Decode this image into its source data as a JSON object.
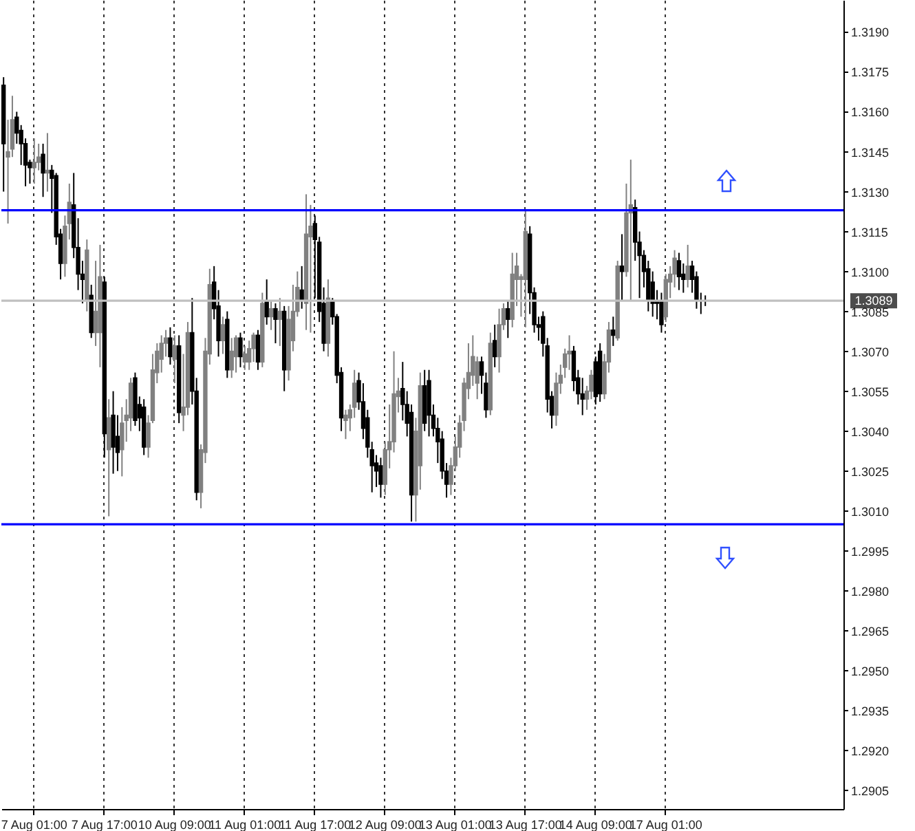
{
  "chart_data": {
    "type": "candlestick",
    "grid": "x",
    "categories": [
      null,
      null,
      null,
      null,
      null,
      null,
      null,
      "7 Aug 01:00",
      null,
      null,
      null,
      null,
      null,
      null,
      null,
      null,
      null,
      null,
      null,
      null,
      null,
      null,
      null,
      "7 Aug 17:00",
      null,
      null,
      null,
      null,
      null,
      null,
      null,
      null,
      null,
      null,
      null,
      null,
      null,
      null,
      null,
      "10 Aug 09:00",
      null,
      null,
      null,
      null,
      null,
      null,
      null,
      null,
      null,
      null,
      null,
      null,
      null,
      null,
      null,
      "11 Aug 01:00",
      null,
      null,
      null,
      null,
      null,
      null,
      null,
      null,
      null,
      null,
      null,
      null,
      null,
      null,
      null,
      "11 Aug 17:00",
      null,
      null,
      null,
      null,
      null,
      null,
      null,
      null,
      null,
      null,
      null,
      null,
      null,
      null,
      null,
      "12 Aug 09:00",
      null,
      null,
      null,
      null,
      null,
      null,
      null,
      null,
      null,
      null,
      null,
      null,
      null,
      null,
      null,
      "13 Aug 01:00",
      null,
      null,
      null,
      null,
      null,
      null,
      null,
      null,
      null,
      null,
      null,
      null,
      null,
      null,
      null,
      "13 Aug 17:00",
      null,
      null,
      null,
      null,
      null,
      null,
      null,
      null,
      null,
      null,
      null,
      null,
      null,
      null,
      null,
      "14 Aug 09:00",
      null,
      null,
      null,
      null,
      null,
      null,
      null,
      null,
      null,
      null,
      null,
      null,
      null,
      null,
      null,
      "17 Aug 01:00",
      null,
      null,
      null,
      null,
      null,
      null,
      null,
      null,
      null,
      null,
      null,
      null,
      null,
      null,
      null,
      null,
      null,
      null,
      null,
      null,
      null,
      null,
      null,
      null,
      null,
      null,
      null,
      null,
      null,
      null,
      null,
      null,
      null,
      null,
      null,
      null,
      null,
      null,
      null,
      null
    ],
    "ohlc": [
      [
        1.317,
        1.3173,
        1.313,
        1.3148
      ],
      [
        1.3143,
        1.3157,
        1.3118,
        1.3145
      ],
      [
        1.3146,
        1.3166,
        1.3143,
        1.3157
      ],
      [
        1.3158,
        1.316,
        1.3148,
        1.3152
      ],
      [
        1.3153,
        1.3155,
        1.314,
        1.3148
      ],
      [
        1.3148,
        1.315,
        1.3132,
        1.314
      ],
      [
        1.3141,
        1.3142,
        1.3133,
        1.3139
      ],
      [
        1.3139,
        1.315,
        1.3133,
        1.3141
      ],
      [
        1.3141,
        1.3148,
        1.3138,
        1.3143
      ],
      [
        1.3144,
        1.3148,
        1.3128,
        1.3137
      ],
      [
        1.3137,
        1.3152,
        1.313,
        1.3138
      ],
      [
        1.3138,
        1.314,
        1.3122,
        1.3135
      ],
      [
        1.3136,
        1.3137,
        1.311,
        1.3113
      ],
      [
        1.3114,
        1.3116,
        1.3097,
        1.3103
      ],
      [
        1.3103,
        1.3121,
        1.3098,
        1.3117
      ],
      [
        1.3118,
        1.3133,
        1.3112,
        1.3126
      ],
      [
        1.3125,
        1.3137,
        1.3105,
        1.3109
      ],
      [
        1.3109,
        1.312,
        1.3093,
        1.3099
      ],
      [
        1.3099,
        1.3104,
        1.3088,
        1.3097
      ],
      [
        1.3089,
        1.3112,
        1.3085,
        1.3108
      ],
      [
        1.3091,
        1.3095,
        1.3075,
        1.3077
      ],
      [
        1.3077,
        1.3104,
        1.3072,
        1.3085
      ],
      [
        1.3077,
        1.311,
        1.3064,
        1.3098
      ],
      [
        1.3096,
        1.3098,
        1.303,
        1.3039
      ],
      [
        1.3033,
        1.3052,
        1.3008,
        1.3045
      ],
      [
        1.3046,
        1.3055,
        1.3024,
        1.3034
      ],
      [
        1.3038,
        1.3046,
        1.3025,
        1.3032
      ],
      [
        1.3033,
        1.3049,
        1.3023,
        1.3043
      ],
      [
        1.3044,
        1.3052,
        1.3036,
        1.3046
      ],
      [
        1.3045,
        1.306,
        1.304,
        1.3058
      ],
      [
        1.306,
        1.3062,
        1.3042,
        1.3044
      ],
      [
        1.305,
        1.3053,
        1.304,
        1.3045
      ],
      [
        1.3049,
        1.3052,
        1.3031,
        1.3034
      ],
      [
        1.3034,
        1.3046,
        1.303,
        1.3043
      ],
      [
        1.3044,
        1.3069,
        1.3043,
        1.3063
      ],
      [
        1.3062,
        1.3073,
        1.3058,
        1.307
      ],
      [
        1.3067,
        1.3076,
        1.3062,
        1.3073
      ],
      [
        1.3073,
        1.3078,
        1.3068,
        1.3075
      ],
      [
        1.3075,
        1.3079,
        1.3065,
        1.3068
      ],
      [
        1.3067,
        1.3076,
        1.3058,
        1.3072
      ],
      [
        1.3072,
        1.3076,
        1.3043,
        1.3047
      ],
      [
        1.3046,
        1.3069,
        1.304,
        1.3049
      ],
      [
        1.3049,
        1.3081,
        1.3046,
        1.3077
      ],
      [
        1.3077,
        1.309,
        1.305,
        1.3055
      ],
      [
        1.3055,
        1.306,
        1.3014,
        1.3017
      ],
      [
        1.3017,
        1.3035,
        1.3011,
        1.3033
      ],
      [
        1.3032,
        1.3075,
        1.3028,
        1.307
      ],
      [
        1.3069,
        1.3101,
        1.3065,
        1.3095
      ],
      [
        1.3096,
        1.3102,
        1.3082,
        1.3086
      ],
      [
        1.3087,
        1.3093,
        1.3068,
        1.3074
      ],
      [
        1.3074,
        1.3083,
        1.3069,
        1.308
      ],
      [
        1.3082,
        1.3085,
        1.306,
        1.3063
      ],
      [
        1.3063,
        1.3075,
        1.306,
        1.307
      ],
      [
        1.3068,
        1.3076,
        1.3062,
        1.3075
      ],
      [
        1.3075,
        1.3077,
        1.3064,
        1.3068
      ],
      [
        1.3066,
        1.3072,
        1.3063,
        1.3069
      ],
      [
        1.3066,
        1.3074,
        1.3063,
        1.3071
      ],
      [
        1.3071,
        1.3077,
        1.3066,
        1.3076
      ],
      [
        1.3076,
        1.3078,
        1.3063,
        1.3066
      ],
      [
        1.3066,
        1.3092,
        1.3064,
        1.3088
      ],
      [
        1.3089,
        1.3097,
        1.308,
        1.3083
      ],
      [
        1.3083,
        1.3089,
        1.3078,
        1.3086
      ],
      [
        1.3086,
        1.3088,
        1.3073,
        1.3082
      ],
      [
        1.3082,
        1.309,
        1.3072,
        1.3085
      ],
      [
        1.3085,
        1.3087,
        1.3055,
        1.3063
      ],
      [
        1.3063,
        1.3087,
        1.3059,
        1.3082
      ],
      [
        1.3074,
        1.3095,
        1.307,
        1.3085
      ],
      [
        1.3085,
        1.31,
        1.3083,
        1.3094
      ],
      [
        1.3093,
        1.3102,
        1.3086,
        1.3089
      ],
      [
        1.3088,
        1.3129,
        1.3078,
        1.3114
      ],
      [
        1.3113,
        1.3125,
        1.3077,
        1.3117
      ],
      [
        1.3118,
        1.3121,
        1.309,
        1.3112
      ],
      [
        1.3111,
        1.3113,
        1.3081,
        1.3085
      ],
      [
        1.3088,
        1.3094,
        1.307,
        1.3073
      ],
      [
        1.3073,
        1.3097,
        1.3068,
        1.309
      ],
      [
        1.3089,
        1.309,
        1.308,
        1.3083
      ],
      [
        1.3083,
        1.3084,
        1.3058,
        1.3061
      ],
      [
        1.3062,
        1.3064,
        1.304,
        1.3045
      ],
      [
        1.3044,
        1.3048,
        1.3037,
        1.3046
      ],
      [
        1.3045,
        1.305,
        1.304,
        1.3048
      ],
      [
        1.3049,
        1.3063,
        1.3045,
        1.3058
      ],
      [
        1.3059,
        1.3062,
        1.3048,
        1.3051
      ],
      [
        1.3051,
        1.3058,
        1.3037,
        1.3041
      ],
      [
        1.3045,
        1.3048,
        1.303,
        1.3034
      ],
      [
        1.3033,
        1.3036,
        1.3017,
        1.3027
      ],
      [
        1.3028,
        1.3031,
        1.3019,
        1.3025
      ],
      [
        1.3027,
        1.303,
        1.3015,
        1.302
      ],
      [
        1.302,
        1.3036,
        1.3016,
        1.3033
      ],
      [
        1.3033,
        1.305,
        1.3026,
        1.3036
      ],
      [
        1.3036,
        1.307,
        1.3032,
        1.3054
      ],
      [
        1.3053,
        1.306,
        1.3047,
        1.3055
      ],
      [
        1.3056,
        1.3066,
        1.3044,
        1.305
      ],
      [
        1.305,
        1.3055,
        1.3038,
        1.3043
      ],
      [
        1.3047,
        1.305,
        1.3006,
        1.3016
      ],
      [
        1.3016,
        1.3045,
        1.3006,
        1.304
      ],
      [
        1.3027,
        1.3062,
        1.3018,
        1.3057
      ],
      [
        1.3057,
        1.3063,
        1.304,
        1.3043
      ],
      [
        1.3059,
        1.3063,
        1.3038,
        1.3046
      ],
      [
        1.3046,
        1.305,
        1.3038,
        1.3041
      ],
      [
        1.3041,
        1.3045,
        1.3028,
        1.3036
      ],
      [
        1.3037,
        1.304,
        1.3022,
        1.3025
      ],
      [
        1.3025,
        1.3028,
        1.3015,
        1.302
      ],
      [
        1.302,
        1.303,
        1.3016,
        1.3027
      ],
      [
        1.3027,
        1.3038,
        1.3025,
        1.3034
      ],
      [
        1.3034,
        1.3046,
        1.303,
        1.3043
      ],
      [
        1.3044,
        1.306,
        1.304,
        1.3058
      ],
      [
        1.3056,
        1.3073,
        1.3052,
        1.3062
      ],
      [
        1.3061,
        1.3076,
        1.3057,
        1.3068
      ],
      [
        1.3058,
        1.3068,
        1.3052,
        1.3066
      ],
      [
        1.3066,
        1.3068,
        1.3054,
        1.3061
      ],
      [
        1.3058,
        1.3062,
        1.3045,
        1.3048
      ],
      [
        1.3048,
        1.3077,
        1.3046,
        1.3073
      ],
      [
        1.3074,
        1.308,
        1.3064,
        1.3068
      ],
      [
        1.3068,
        1.3086,
        1.3062,
        1.308
      ],
      [
        1.308,
        1.3088,
        1.3078,
        1.3086
      ],
      [
        1.3086,
        1.3089,
        1.3075,
        1.3082
      ],
      [
        1.3082,
        1.3107,
        1.3079,
        1.3099
      ],
      [
        1.3097,
        1.3107,
        1.3087,
        1.3102
      ],
      [
        1.3097,
        1.3099,
        1.3083,
        1.3098
      ],
      [
        1.3097,
        1.3123,
        1.3079,
        1.3115
      ],
      [
        1.3114,
        1.3117,
        1.3084,
        1.3092
      ],
      [
        1.3092,
        1.3094,
        1.3077,
        1.308
      ],
      [
        1.308,
        1.3083,
        1.3074,
        1.3079
      ],
      [
        1.3083,
        1.3085,
        1.3068,
        1.3073
      ],
      [
        1.3072,
        1.3075,
        1.3047,
        1.3052
      ],
      [
        1.3053,
        1.3055,
        1.3041,
        1.3046
      ],
      [
        1.3046,
        1.3062,
        1.3042,
        1.3058
      ],
      [
        1.3058,
        1.3065,
        1.3054,
        1.3061
      ],
      [
        1.3064,
        1.3071,
        1.306,
        1.3069
      ],
      [
        1.3069,
        1.3076,
        1.3063,
        1.307
      ],
      [
        1.307,
        1.3072,
        1.3055,
        1.3059
      ],
      [
        1.306,
        1.3063,
        1.305,
        1.3054
      ],
      [
        1.3054,
        1.306,
        1.3046,
        1.3052
      ],
      [
        1.3052,
        1.3057,
        1.3048,
        1.3055
      ],
      [
        1.3055,
        1.3063,
        1.3052,
        1.3061
      ],
      [
        1.3066,
        1.3068,
        1.305,
        1.3053
      ],
      [
        1.307,
        1.3073,
        1.3051,
        1.3054
      ],
      [
        1.3054,
        1.3069,
        1.3052,
        1.3066
      ],
      [
        1.3066,
        1.3081,
        1.3062,
        1.3078
      ],
      [
        1.3078,
        1.3083,
        1.3072,
        1.3076
      ],
      [
        1.3075,
        1.3104,
        1.3074,
        1.3102
      ],
      [
        1.3102,
        1.3114,
        1.3089,
        1.31
      ],
      [
        1.31,
        1.3133,
        1.3098,
        1.3122
      ],
      [
        1.3122,
        1.3142,
        1.3089,
        1.3125
      ],
      [
        1.3124,
        1.3127,
        1.3104,
        1.3111
      ],
      [
        1.3111,
        1.3115,
        1.309,
        1.3106
      ],
      [
        1.3106,
        1.3108,
        1.3094,
        1.31
      ],
      [
        1.3101,
        1.3104,
        1.3085,
        1.3089
      ],
      [
        1.3096,
        1.31,
        1.3083,
        1.3088
      ],
      [
        1.3089,
        1.3093,
        1.3082,
        1.3088
      ],
      [
        1.3089,
        1.3092,
        1.3077,
        1.308
      ],
      [
        1.3083,
        1.3099,
        1.3081,
        1.3097
      ],
      [
        1.3096,
        1.3102,
        1.309,
        1.3099
      ],
      [
        1.3099,
        1.3108,
        1.3094,
        1.3105
      ],
      [
        1.3104,
        1.3107,
        1.3093,
        1.3098
      ],
      [
        1.3099,
        1.3103,
        1.3092,
        1.3097
      ],
      [
        1.3097,
        1.311,
        1.3094,
        1.3102
      ],
      [
        1.3102,
        1.3104,
        1.3092,
        1.3097
      ],
      [
        1.3098,
        1.31,
        1.3086,
        1.3089
      ],
      [
        1.3089,
        1.3092,
        1.3084,
        1.3089
      ],
      [
        1.3089,
        1.3091,
        1.3087,
        1.3089
      ],
      null,
      null,
      null,
      null,
      null,
      null,
      null,
      null,
      null,
      null,
      null,
      null,
      null,
      null,
      null,
      null,
      null,
      null,
      null,
      null,
      null,
      null,
      null,
      null,
      null,
      null,
      null,
      null,
      null,
      null,
      null
    ],
    "colors": [
      "#000000",
      "#808080",
      "#808080",
      "#000000",
      "#000000",
      "#000000",
      "#000000",
      "#808080",
      "#808080",
      "#000000",
      "#808080",
      "#000000",
      "#000000",
      "#000000",
      "#808080",
      "#808080",
      "#000000",
      "#000000",
      "#000000",
      "#808080",
      "#000000",
      "#808080",
      "#808080",
      "#000000",
      "#808080",
      "#000000",
      "#000000",
      "#808080",
      "#808080",
      "#808080",
      "#000000",
      "#000000",
      "#000000",
      "#808080",
      "#808080",
      "#808080",
      "#808080",
      "#808080",
      "#000000",
      "#808080",
      "#000000",
      "#808080",
      "#808080",
      "#000000",
      "#000000",
      "#808080",
      "#808080",
      "#808080",
      "#000000",
      "#000000",
      "#808080",
      "#000000",
      "#808080",
      "#808080",
      "#000000",
      "#808080",
      "#808080",
      "#808080",
      "#000000",
      "#808080",
      "#000000",
      "#808080",
      "#000000",
      "#808080",
      "#000000",
      "#808080",
      "#808080",
      "#808080",
      "#000000",
      "#808080",
      "#808080",
      "#000000",
      "#000000",
      "#000000",
      "#808080",
      "#000000",
      "#000000",
      "#000000",
      "#808080",
      "#808080",
      "#808080",
      "#000000",
      "#000000",
      "#000000",
      "#000000",
      "#000000",
      "#000000",
      "#808080",
      "#808080",
      "#808080",
      "#808080",
      "#000000",
      "#000000",
      "#000000",
      "#808080",
      "#808080",
      "#000000",
      "#000000",
      "#000000",
      "#000000",
      "#000000",
      "#000000",
      "#808080",
      "#808080",
      "#808080",
      "#808080",
      "#808080",
      "#808080",
      "#808080",
      "#000000",
      "#000000",
      "#808080",
      "#000000",
      "#808080",
      "#808080",
      "#000000",
      "#808080",
      "#808080",
      "#808080",
      "#808080",
      "#000000",
      "#000000",
      "#000000",
      "#000000",
      "#000000",
      "#000000",
      "#808080",
      "#808080",
      "#808080",
      "#808080",
      "#000000",
      "#000000",
      "#000000",
      "#808080",
      "#808080",
      "#000000",
      "#000000",
      "#808080",
      "#808080",
      "#000000",
      "#808080",
      "#000000",
      "#808080",
      "#808080",
      "#000000",
      "#000000",
      "#000000",
      "#000000",
      "#000000",
      "#000000",
      "#000000",
      "#808080",
      "#808080",
      "#808080",
      "#000000",
      "#000000",
      "#808080",
      "#000000",
      "#000000",
      "#000000",
      "#000000",
      null,
      null,
      null,
      null,
      null,
      null,
      null,
      null,
      null,
      null,
      null,
      null,
      null,
      null,
      null,
      null,
      null,
      null,
      null,
      null,
      null,
      null,
      null,
      null,
      null,
      null,
      null,
      null,
      null,
      null,
      null
    ],
    "ylim": [
      1.2898,
      1.3202
    ],
    "yticks": [
      {
        "value": 1.2905,
        "label": "1.2905"
      },
      {
        "value": 1.292,
        "label": "1.2920"
      },
      {
        "value": 1.2935,
        "label": "1.2935"
      },
      {
        "value": 1.295,
        "label": "1.2950"
      },
      {
        "value": 1.2965,
        "label": "1.2965"
      },
      {
        "value": 1.298,
        "label": "1.2980"
      },
      {
        "value": 1.2995,
        "label": "1.2995"
      },
      {
        "value": 1.301,
        "label": "1.3010"
      },
      {
        "value": 1.3025,
        "label": "1.3025"
      },
      {
        "value": 1.304,
        "label": "1.3040"
      },
      {
        "value": 1.3055,
        "label": "1.3055"
      },
      {
        "value": 1.307,
        "label": "1.3070"
      },
      {
        "value": 1.3085,
        "label": "1.3085"
      },
      {
        "value": 1.31,
        "label": "1.3100"
      },
      {
        "value": 1.3115,
        "label": "1.3115"
      },
      {
        "value": 1.313,
        "label": "1.3130"
      },
      {
        "value": 1.3145,
        "label": "1.3145"
      },
      {
        "value": 1.316,
        "label": "1.3160"
      },
      {
        "value": 1.3175,
        "label": "1.3175"
      },
      {
        "value": 1.319,
        "label": "1.3190"
      }
    ],
    "ref_lines": [
      {
        "axis": "y",
        "value": 1.3123,
        "color": "#0000ff"
      },
      {
        "axis": "y",
        "value": 1.3005,
        "color": "#0000ff"
      },
      {
        "axis": "y",
        "value": 1.3089,
        "label": "1.3089",
        "color": "#c0c0c0"
      }
    ]
  }
}
